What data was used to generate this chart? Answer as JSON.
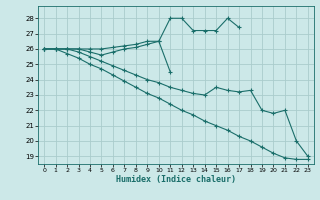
{
  "title": "",
  "xlabel": "Humidex (Indice chaleur)",
  "bg_color": "#cce8e8",
  "grid_color": "#aacccc",
  "line_color": "#1a6e6a",
  "xlim": [
    -0.5,
    23.5
  ],
  "ylim": [
    18.5,
    28.8
  ],
  "yticks": [
    19,
    20,
    21,
    22,
    23,
    24,
    25,
    26,
    27,
    28
  ],
  "xticks": [
    0,
    1,
    2,
    3,
    4,
    5,
    6,
    7,
    8,
    9,
    10,
    11,
    12,
    13,
    14,
    15,
    16,
    17,
    18,
    19,
    20,
    21,
    22,
    23
  ],
  "series": [
    {
      "x": [
        0,
        1,
        2,
        3,
        4,
        5,
        6,
        7,
        8,
        9,
        10,
        11,
        12,
        13,
        14,
        15,
        16,
        17,
        18,
        19,
        20,
        21,
        22,
        23
      ],
      "y": [
        26,
        26,
        26,
        26,
        26,
        26,
        26.1,
        26.2,
        26.3,
        26.5,
        26.5,
        28.0,
        28.0,
        27.2,
        27.2,
        27.2,
        28.0,
        27.4,
        null,
        null,
        null,
        null,
        null,
        null
      ]
    },
    {
      "x": [
        0,
        1,
        2,
        3,
        4,
        5,
        6,
        7,
        8,
        9,
        10,
        11
      ],
      "y": [
        26,
        26,
        26,
        26,
        25.8,
        25.6,
        25.8,
        26.0,
        26.1,
        26.3,
        26.5,
        24.5
      ]
    },
    {
      "x": [
        0,
        1,
        2,
        3,
        4,
        5,
        6,
        7,
        8,
        9,
        10,
        11,
        12,
        13,
        14,
        15,
        16,
        17,
        18,
        19,
        20,
        21,
        22,
        23
      ],
      "y": [
        26,
        26,
        26,
        25.8,
        25.5,
        25.2,
        24.9,
        24.6,
        24.3,
        24.0,
        23.8,
        23.5,
        23.3,
        23.1,
        23.0,
        23.5,
        23.3,
        23.2,
        23.3,
        22.0,
        21.8,
        22.0,
        20.0,
        19.0
      ]
    },
    {
      "x": [
        0,
        1,
        2,
        3,
        4,
        5,
        6,
        7,
        8,
        9,
        10,
        11,
        12,
        13,
        14,
        15,
        16,
        17,
        18,
        19,
        20,
        21,
        22,
        23
      ],
      "y": [
        26,
        26,
        25.7,
        25.4,
        25.0,
        24.7,
        24.3,
        23.9,
        23.5,
        23.1,
        22.8,
        22.4,
        22.0,
        21.7,
        21.3,
        21.0,
        20.7,
        20.3,
        20.0,
        19.6,
        19.2,
        18.9,
        18.8,
        18.8
      ]
    }
  ]
}
